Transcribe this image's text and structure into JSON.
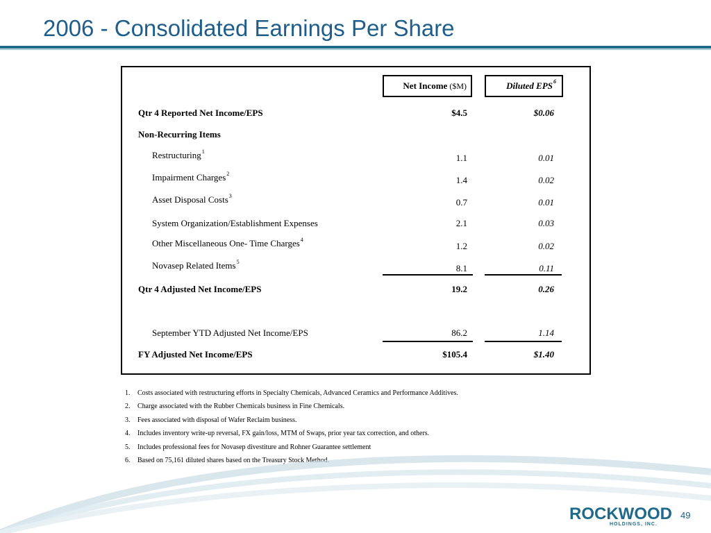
{
  "slide": {
    "title": "2006 - Consolidated Earnings Per Share",
    "page_number": "49"
  },
  "table": {
    "header": {
      "net_income_label": "Net Income",
      "net_income_unit": "($M)",
      "eps_label": "Diluted EPS",
      "eps_footnote": "6"
    },
    "rows": [
      {
        "label": "Qtr 4 Reported Net Income/EPS",
        "footnote": "",
        "net_income": "$4.5",
        "eps": "$0.06"
      },
      {
        "label": "Non-Recurring Items",
        "footnote": "",
        "net_income": "",
        "eps": ""
      },
      {
        "label": "Restructuring",
        "footnote": "1",
        "net_income": "1.1",
        "eps": "0.01"
      },
      {
        "label": "Impairment Charges",
        "footnote": "2",
        "net_income": "1.4",
        "eps": "0.02"
      },
      {
        "label": "Asset Disposal Costs",
        "footnote": "3",
        "net_income": "0.7",
        "eps": "0.01"
      },
      {
        "label": "System Organization/Establishment Expenses",
        "footnote": "",
        "net_income": "2.1",
        "eps": "0.03"
      },
      {
        "label": "Other Miscellaneous One- Time Charges",
        "footnote": "4",
        "net_income": "1.2",
        "eps": "0.02"
      },
      {
        "label": "Novasep Related Items",
        "footnote": "5",
        "net_income": "8.1",
        "eps": "0.11"
      },
      {
        "label": "Qtr 4 Adjusted Net Income/EPS",
        "footnote": "",
        "net_income": "19.2",
        "eps": "0.26"
      },
      {
        "label": "September YTD Adjusted Net Income/EPS",
        "footnote": "",
        "net_income": "86.2",
        "eps": "1.14"
      },
      {
        "label": "FY Adjusted Net Income/EPS",
        "footnote": "",
        "net_income": "$105.4",
        "eps": "$1.40"
      }
    ]
  },
  "footnotes": [
    {
      "num": "1.",
      "text": "Costs associated with restructuring efforts in Specialty Chemicals, Advanced Ceramics and Performance Additives."
    },
    {
      "num": "2.",
      "text": "Charge associated with the Rubber Chemicals business in Fine Chemicals."
    },
    {
      "num": "3.",
      "text": "Fees associated with disposal of Wafer Reclaim business."
    },
    {
      "num": "4.",
      "text": "Includes inventory write-up reversal, FX gain/loss, MTM of Swaps, prior year tax correction, and others."
    },
    {
      "num": "5.",
      "text": "Includes professional fees for Novasep divestiture and Rohner Guarantee settlement"
    },
    {
      "num": "6.",
      "text": "Based on 75,161 diluted shares based on the Treasury Stock Method."
    }
  ],
  "logo": {
    "name": "ROCKWOOD",
    "subtitle": "HOLDINGS, INC."
  },
  "colors": {
    "accent": "#1f6a8a",
    "title": "#1f5e8a"
  }
}
